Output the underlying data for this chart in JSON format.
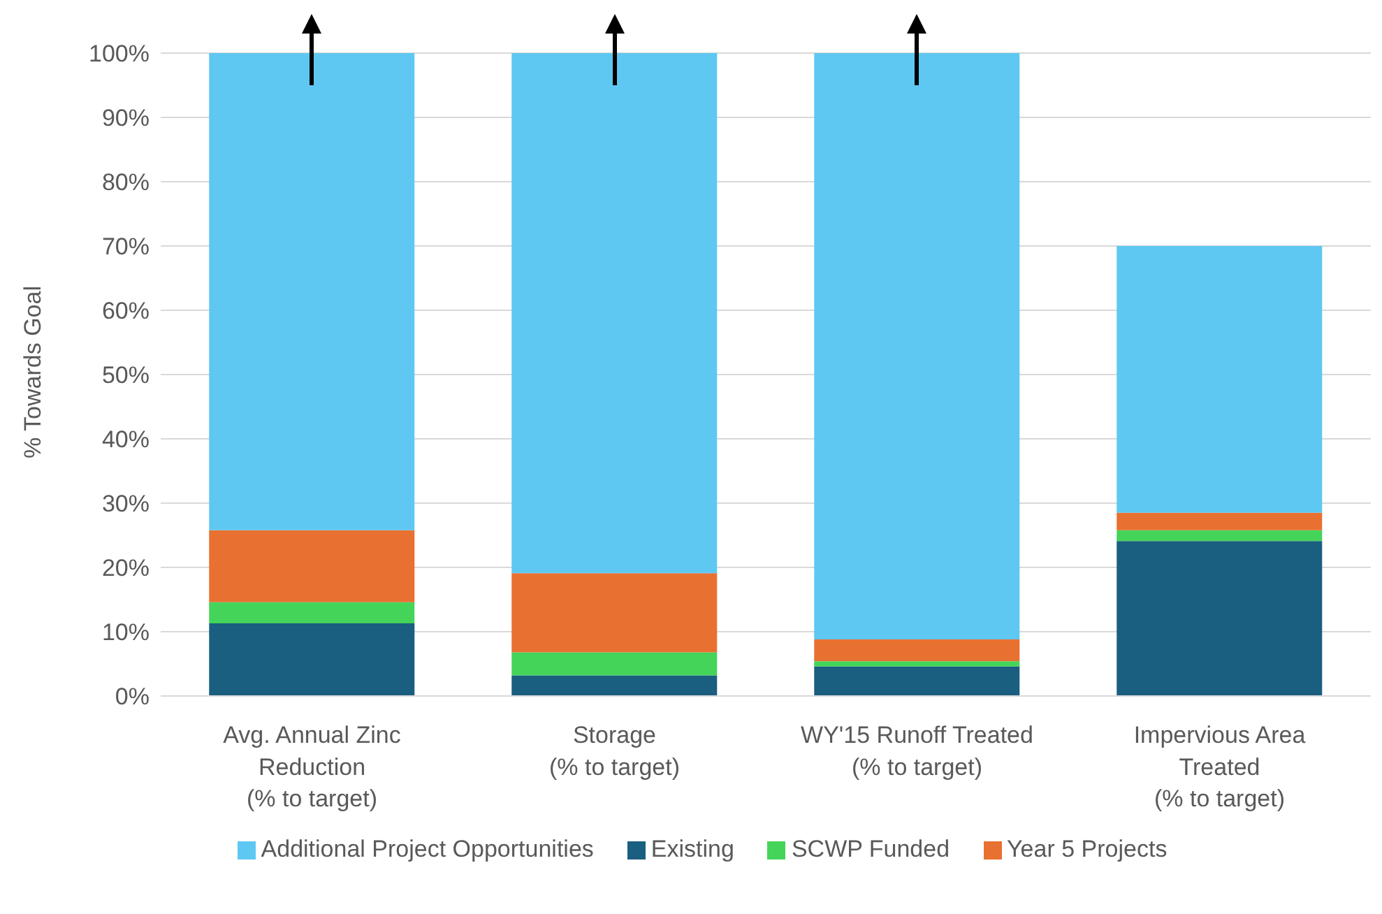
{
  "chart_data": {
    "type": "bar",
    "stacked": true,
    "ylabel": "% Towards Goal",
    "categories": [
      "Avg. Annual Zinc\nReduction\n(% to target)",
      "Storage\n(% to target)",
      "WY'15 Runoff Treated\n(% to target)",
      "Impervious Area\nTreated\n(% to target)"
    ],
    "series": [
      {
        "name": "Existing",
        "color": "#1a5e80",
        "values": [
          11.3,
          3.2,
          4.6,
          24.1
        ]
      },
      {
        "name": "SCWP Funded",
        "color": "#44d45a",
        "values": [
          3.3,
          3.6,
          0.8,
          1.7
        ]
      },
      {
        "name": "Year 5 Projects",
        "color": "#e87031",
        "values": [
          11.2,
          12.3,
          3.4,
          2.7
        ]
      },
      {
        "name": "Additional Project Opportunities",
        "color": "#5ec8f2",
        "values": [
          74.2,
          80.9,
          91.2,
          41.5
        ]
      }
    ],
    "ylim": [
      0,
      100
    ],
    "yticks": [
      {
        "value": 0,
        "label": "0%"
      },
      {
        "value": 10,
        "label": "10%"
      },
      {
        "value": 20,
        "label": "20%"
      },
      {
        "value": 30,
        "label": "30%"
      },
      {
        "value": 40,
        "label": "40%"
      },
      {
        "value": 50,
        "label": "50%"
      },
      {
        "value": 60,
        "label": "60%"
      },
      {
        "value": 70,
        "label": "70%"
      },
      {
        "value": 80,
        "label": "80%"
      },
      {
        "value": 90,
        "label": "90%"
      },
      {
        "value": 100,
        "label": "100%"
      }
    ],
    "grid": "y",
    "legend": "bottom"
  }
}
